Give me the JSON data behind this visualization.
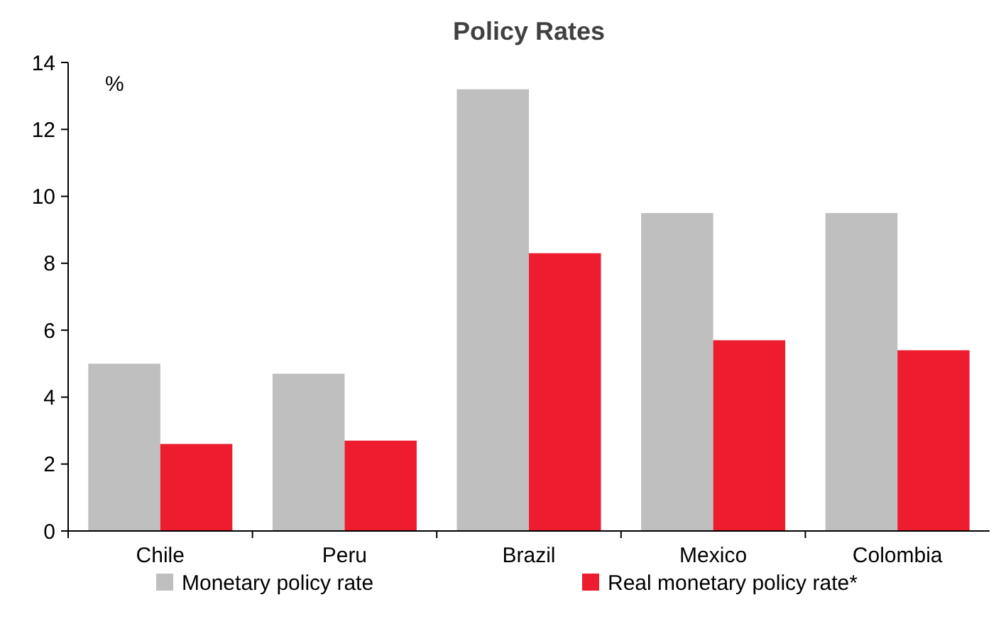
{
  "chart_data": {
    "type": "bar",
    "title": "Policy Rates",
    "ylabel": "%",
    "categories": [
      "Chile",
      "Peru",
      "Brazil",
      "Mexico",
      "Colombia"
    ],
    "series": [
      {
        "name": "Monetary policy rate",
        "color": "#bfbfbf",
        "values": [
          5.0,
          4.7,
          13.2,
          9.5,
          9.5
        ]
      },
      {
        "name": "Real monetary policy rate*",
        "color": "#ed1c2e",
        "values": [
          2.6,
          2.7,
          8.3,
          5.7,
          5.4
        ]
      }
    ],
    "ylim": [
      0,
      14
    ],
    "yticks": [
      0,
      2,
      4,
      6,
      8,
      10,
      12,
      14
    ],
    "grid": false,
    "legend": "bottom"
  }
}
